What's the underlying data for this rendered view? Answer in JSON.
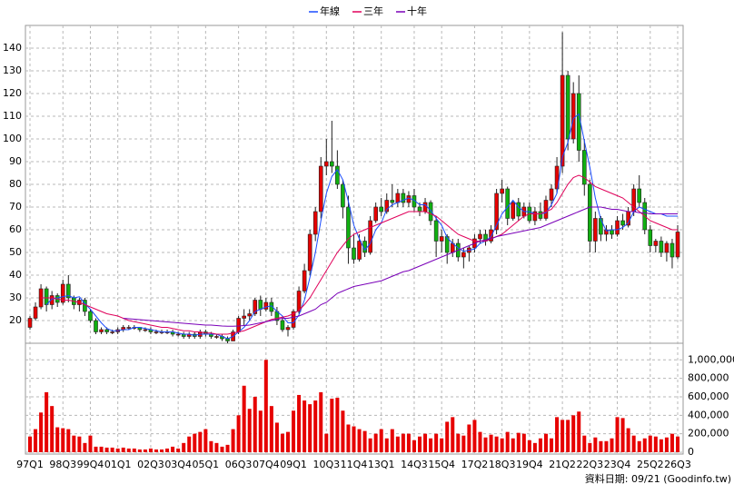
{
  "chart_data": {
    "type": "candlestick",
    "note": "資料日期: 09/21 (Goodinfo.tw)",
    "categories": [
      "97Q1",
      null,
      null,
      null,
      null,
      null,
      "98Q3",
      null,
      null,
      null,
      null,
      "99Q4",
      null,
      null,
      null,
      null,
      "01Q1",
      null,
      null,
      null,
      null,
      null,
      "02Q3",
      null,
      null,
      null,
      null,
      "03Q4",
      null,
      null,
      null,
      null,
      "05Q1",
      null,
      null,
      null,
      null,
      null,
      "06Q3",
      null,
      null,
      null,
      null,
      "07Q4",
      null,
      null,
      null,
      null,
      "09Q1",
      null,
      null,
      null,
      null,
      null,
      "10Q3",
      null,
      null,
      null,
      null,
      "11Q4",
      null,
      null,
      null,
      null,
      "13Q1",
      null,
      null,
      null,
      null,
      null,
      "14Q3",
      null,
      null,
      null,
      null,
      "15Q4",
      null,
      null,
      null,
      null,
      null,
      "17Q2",
      null,
      null,
      null,
      null,
      "18Q3",
      null,
      null,
      null,
      null,
      "19Q4",
      null,
      null,
      null,
      null,
      null,
      "21Q2",
      null,
      null,
      null,
      null,
      "22Q3",
      null,
      null,
      null,
      null,
      "23Q4",
      null,
      null,
      null,
      null,
      null,
      "25Q2",
      null,
      null,
      null,
      null,
      "26Q3"
    ],
    "open": [
      17,
      21,
      26,
      34,
      27,
      31,
      28,
      36,
      30,
      27,
      29,
      24,
      20,
      15,
      16,
      15,
      15,
      16,
      17,
      17,
      17,
      16,
      16,
      15,
      15,
      15,
      15,
      14,
      14,
      13,
      14,
      13,
      15,
      14,
      13,
      13,
      12,
      11,
      15,
      21,
      22,
      23,
      29,
      25,
      28,
      24,
      20,
      16,
      17,
      24,
      33,
      42,
      58,
      68,
      88,
      90,
      88,
      80,
      70,
      52,
      47,
      55,
      50,
      64,
      70,
      68,
      73,
      72,
      76,
      72,
      75,
      70,
      68,
      72,
      64,
      55,
      57,
      50,
      54,
      48,
      50,
      52,
      56,
      58,
      55,
      60,
      76,
      78,
      65,
      72,
      66,
      70,
      64,
      68,
      65,
      73,
      78,
      88,
      128,
      100,
      120,
      95,
      80,
      55,
      65,
      58,
      60,
      58,
      64,
      62,
      68,
      78,
      72,
      60,
      53,
      55,
      50,
      54,
      48
    ],
    "high": [
      22,
      28,
      36,
      35,
      33,
      32,
      38,
      40,
      31,
      30,
      30,
      25,
      21,
      17,
      17,
      16,
      17,
      18,
      18,
      18,
      17,
      17,
      17,
      16,
      16,
      16,
      16,
      15,
      15,
      15,
      15,
      16,
      16,
      15,
      14,
      14,
      13,
      16,
      22,
      25,
      25,
      30,
      31,
      30,
      30,
      26,
      22,
      18,
      25,
      35,
      45,
      60,
      70,
      92,
      100,
      108,
      95,
      82,
      75,
      58,
      58,
      57,
      66,
      72,
      74,
      76,
      80,
      78,
      78,
      77,
      78,
      72,
      74,
      73,
      66,
      60,
      58,
      56,
      56,
      52,
      53,
      58,
      60,
      60,
      62,
      78,
      82,
      79,
      73,
      74,
      72,
      72,
      70,
      72,
      75,
      80,
      92,
      147,
      130,
      125,
      128,
      100,
      82,
      68,
      66,
      62,
      62,
      66,
      67,
      70,
      80,
      84,
      74,
      62,
      56,
      57,
      55,
      56,
      62
    ],
    "low": [
      16,
      20,
      25,
      24,
      25,
      26,
      27,
      28,
      25,
      24,
      22,
      19,
      14,
      14,
      14,
      14,
      14,
      15,
      16,
      16,
      15,
      15,
      14,
      14,
      14,
      14,
      13,
      13,
      12,
      12,
      12,
      12,
      13,
      12,
      12,
      11,
      10,
      11,
      14,
      18,
      20,
      22,
      22,
      24,
      22,
      18,
      15,
      13,
      16,
      23,
      32,
      40,
      55,
      65,
      84,
      85,
      78,
      65,
      45,
      45,
      46,
      48,
      49,
      63,
      66,
      67,
      70,
      70,
      70,
      70,
      68,
      66,
      67,
      62,
      48,
      50,
      45,
      48,
      46,
      43,
      46,
      50,
      54,
      53,
      54,
      58,
      72,
      62,
      64,
      64,
      65,
      63,
      62,
      64,
      64,
      70,
      76,
      85,
      95,
      98,
      90,
      75,
      50,
      50,
      55,
      55,
      56,
      57,
      60,
      61,
      66,
      70,
      58,
      50,
      50,
      48,
      46,
      43,
      47
    ],
    "close": [
      21,
      26,
      34,
      27,
      31,
      28,
      36,
      30,
      27,
      29,
      24,
      20,
      15,
      16,
      15,
      15,
      16,
      17,
      17,
      17,
      16,
      16,
      15,
      15,
      15,
      15,
      14,
      14,
      13,
      14,
      13,
      15,
      14,
      13,
      13,
      12,
      11,
      15,
      21,
      22,
      23,
      29,
      25,
      28,
      24,
      20,
      16,
      17,
      24,
      33,
      42,
      58,
      68,
      88,
      90,
      88,
      80,
      70,
      52,
      47,
      55,
      50,
      64,
      70,
      68,
      73,
      72,
      76,
      72,
      75,
      70,
      68,
      72,
      64,
      55,
      57,
      50,
      54,
      48,
      50,
      52,
      56,
      58,
      55,
      60,
      76,
      78,
      65,
      72,
      66,
      70,
      64,
      68,
      65,
      73,
      78,
      88,
      128,
      100,
      120,
      95,
      80,
      55,
      65,
      58,
      60,
      58,
      64,
      62,
      68,
      78,
      72,
      60,
      53,
      55,
      50,
      54,
      48,
      59
    ],
    "volume": [
      170000,
      250000,
      430000,
      650000,
      500000,
      270000,
      260000,
      250000,
      180000,
      170000,
      100000,
      180000,
      60000,
      60000,
      50000,
      50000,
      40000,
      50000,
      40000,
      40000,
      30000,
      30000,
      40000,
      30000,
      30000,
      40000,
      60000,
      40000,
      100000,
      170000,
      200000,
      220000,
      250000,
      120000,
      100000,
      60000,
      80000,
      250000,
      400000,
      720000,
      470000,
      600000,
      450000,
      1000000,
      500000,
      320000,
      200000,
      220000,
      450000,
      620000,
      560000,
      520000,
      560000,
      650000,
      200000,
      580000,
      590000,
      450000,
      300000,
      280000,
      250000,
      230000,
      150000,
      200000,
      250000,
      150000,
      250000,
      170000,
      200000,
      200000,
      130000,
      170000,
      200000,
      150000,
      200000,
      150000,
      330000,
      380000,
      200000,
      180000,
      300000,
      350000,
      220000,
      160000,
      190000,
      170000,
      150000,
      220000,
      150000,
      210000,
      200000,
      130000,
      100000,
      150000,
      200000,
      150000,
      380000,
      350000,
      350000,
      400000,
      440000,
      180000,
      100000,
      160000,
      120000,
      120000,
      150000,
      380000,
      370000,
      260000,
      180000,
      120000,
      150000,
      180000,
      170000,
      140000,
      160000,
      200000,
      170000
    ],
    "up_color": "#e60000",
    "down_color": "#10b010",
    "volume_color": "#e60000",
    "series": [
      {
        "name": "年線",
        "color": "#1a4cff",
        "values": [
          null,
          null,
          null,
          27,
          29.5,
          30,
          30.5,
          31,
          30,
          30.5,
          27.5,
          25,
          22,
          19,
          16.5,
          15.5,
          15.5,
          16,
          16,
          17,
          17,
          16.5,
          16,
          15.5,
          15,
          15,
          15,
          14.5,
          14,
          14,
          13.5,
          14,
          14,
          14,
          14,
          13,
          12,
          13,
          15,
          17,
          20,
          24,
          25,
          26,
          26.5,
          24,
          22,
          19,
          19,
          22.5,
          29,
          39,
          50,
          64,
          76,
          83.5,
          86.5,
          82,
          72.5,
          62,
          56,
          51,
          54,
          60,
          63,
          69,
          71,
          72,
          73,
          74,
          73,
          71,
          71,
          68.5,
          65,
          62,
          56.5,
          54,
          52,
          50.5,
          51,
          51.5,
          54,
          55,
          57,
          62,
          67,
          70,
          73,
          70,
          68,
          68,
          67,
          67,
          67.5,
          71,
          76,
          92,
          98.5,
          109,
          111,
          99,
          87.5,
          74,
          64.5,
          59.5,
          60,
          60,
          61,
          63,
          68,
          70,
          69,
          68,
          67,
          67,
          66,
          66,
          66
        ]
      },
      {
        "name": "三年",
        "color": "#e0005a",
        "values": [
          null,
          null,
          30,
          30,
          30,
          29.5,
          29,
          29,
          28.5,
          28,
          27,
          26,
          25,
          24,
          23,
          22.5,
          22,
          21,
          20,
          19.5,
          19,
          18.5,
          18,
          17.5,
          17,
          17,
          16.5,
          16,
          15.5,
          15.5,
          15,
          15,
          14.5,
          14.5,
          14,
          14,
          14,
          14.5,
          15,
          15.5,
          16.5,
          17.5,
          18.5,
          19.5,
          20.5,
          21,
          21.5,
          22,
          23,
          24.5,
          27,
          30,
          34,
          38,
          42,
          46,
          50,
          53,
          56,
          58,
          59,
          60,
          61,
          62,
          63,
          64,
          65,
          66,
          67,
          68,
          68,
          68,
          68,
          67,
          66,
          64,
          62,
          60,
          58,
          57,
          56,
          55,
          55,
          55,
          56,
          57,
          58,
          60,
          62,
          64,
          66,
          67,
          67,
          67,
          68,
          69,
          72,
          76,
          80,
          83,
          84,
          83,
          81,
          79,
          78,
          77,
          76,
          75,
          74,
          72,
          70,
          68,
          66,
          64,
          63,
          62,
          61,
          60,
          60
        ]
      },
      {
        "name": "十年",
        "color": "#7a00b8",
        "values": [
          null,
          null,
          null,
          null,
          null,
          null,
          null,
          null,
          null,
          null,
          null,
          null,
          null,
          null,
          null,
          null,
          null,
          21,
          20.8,
          20.6,
          20.4,
          20.2,
          20,
          19.8,
          19.6,
          19.4,
          19.2,
          19,
          18.8,
          18.6,
          18.4,
          18.2,
          18,
          18,
          17.8,
          17.6,
          17.5,
          17.5,
          17.6,
          17.8,
          18,
          18.5,
          19,
          19.5,
          20,
          20.5,
          21,
          21,
          21.5,
          22,
          23,
          24,
          25,
          27,
          28,
          30,
          32,
          33,
          34,
          35,
          35.5,
          36,
          36.5,
          37,
          37.5,
          38.5,
          39.5,
          40.5,
          41.5,
          42,
          43,
          44,
          45,
          46,
          47,
          48,
          49,
          50,
          51,
          52,
          53,
          54,
          55,
          55.5,
          56,
          57,
          57.5,
          58,
          58.5,
          59,
          59.5,
          60,
          60.5,
          61,
          62,
          63,
          64,
          65,
          66,
          67,
          68,
          69,
          70,
          70,
          70,
          69.5,
          69,
          69,
          68.5,
          68,
          68,
          67.5,
          67.5,
          67,
          67,
          67,
          67,
          67,
          67
        ]
      }
    ],
    "ylim": [
      10,
      150
    ],
    "yticks": [
      20,
      30,
      40,
      50,
      60,
      70,
      80,
      90,
      100,
      110,
      120,
      130,
      140
    ],
    "y2lim": [
      0,
      1180000
    ],
    "y2ticks": [
      0,
      {
        "value": 200000,
        "label": "200,000"
      },
      {
        "value": 400000,
        "label": "400,000"
      },
      {
        "value": 600000,
        "label": "600,000"
      },
      {
        "value": 800000,
        "label": "800,000"
      },
      {
        "value": 1000000,
        "label": "1,000,000"
      }
    ],
    "grid": true
  }
}
